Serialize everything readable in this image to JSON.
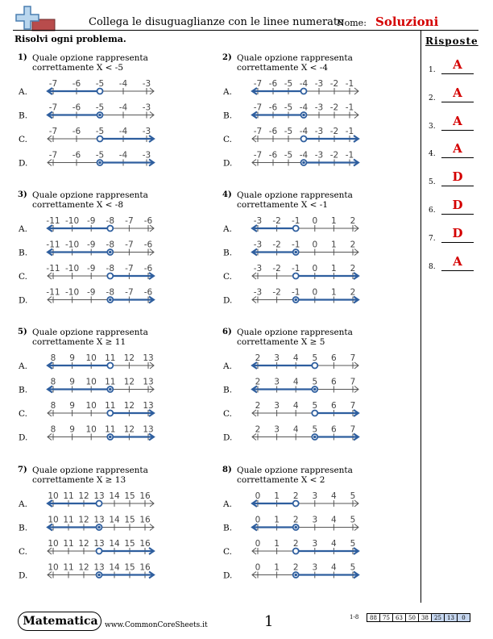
{
  "header": {
    "title": "Collega le disuguaglianze con le linee numerate",
    "name_label": "Nome:",
    "name_value": "Soluzioni",
    "instruction": "Risolvi ogni problema."
  },
  "answers": {
    "title": "Risposte",
    "items": [
      {
        "num": "1.",
        "value": "A"
      },
      {
        "num": "2.",
        "value": "A"
      },
      {
        "num": "3.",
        "value": "A"
      },
      {
        "num": "4.",
        "value": "A"
      },
      {
        "num": "5.",
        "value": "D"
      },
      {
        "num": "6.",
        "value": "D"
      },
      {
        "num": "7.",
        "value": "D"
      },
      {
        "num": "8.",
        "value": "A"
      }
    ]
  },
  "problems": [
    {
      "num": "1)",
      "text": "Quale opzione rappresenta correttamente X < -5",
      "ticks": [
        "-7",
        "-6",
        "-5",
        "-4",
        "-3"
      ],
      "point": 2,
      "options": [
        {
          "label": "A.",
          "closed": false,
          "dir": "left"
        },
        {
          "label": "B.",
          "closed": true,
          "dir": "left"
        },
        {
          "label": "C.",
          "closed": false,
          "dir": "right"
        },
        {
          "label": "D.",
          "closed": true,
          "dir": "right"
        }
      ]
    },
    {
      "num": "2)",
      "text": "Quale opzione rappresenta correttamente X < -4",
      "ticks": [
        "-7",
        "-6",
        "-5",
        "-4",
        "-3",
        "-2",
        "-1"
      ],
      "point": 3,
      "options": [
        {
          "label": "A.",
          "closed": false,
          "dir": "left"
        },
        {
          "label": "B.",
          "closed": true,
          "dir": "left"
        },
        {
          "label": "C.",
          "closed": false,
          "dir": "right"
        },
        {
          "label": "D.",
          "closed": true,
          "dir": "right"
        }
      ]
    },
    {
      "num": "3)",
      "text": "Quale opzione rappresenta correttamente X < -8",
      "ticks": [
        "-11",
        "-10",
        "-9",
        "-8",
        "-7",
        "-6"
      ],
      "point": 3,
      "options": [
        {
          "label": "A.",
          "closed": false,
          "dir": "left"
        },
        {
          "label": "B.",
          "closed": true,
          "dir": "left"
        },
        {
          "label": "C.",
          "closed": false,
          "dir": "right"
        },
        {
          "label": "D.",
          "closed": true,
          "dir": "right"
        }
      ]
    },
    {
      "num": "4)",
      "text": "Quale opzione rappresenta correttamente X < -1",
      "ticks": [
        "-3",
        "-2",
        "-1",
        "0",
        "1",
        "2"
      ],
      "point": 2,
      "options": [
        {
          "label": "A.",
          "closed": false,
          "dir": "left"
        },
        {
          "label": "B.",
          "closed": true,
          "dir": "left"
        },
        {
          "label": "C.",
          "closed": false,
          "dir": "right"
        },
        {
          "label": "D.",
          "closed": true,
          "dir": "right"
        }
      ]
    },
    {
      "num": "5)",
      "text": "Quale opzione rappresenta correttamente X ≥ 11",
      "ticks": [
        "8",
        "9",
        "10",
        "11",
        "12",
        "13"
      ],
      "point": 3,
      "options": [
        {
          "label": "A.",
          "closed": false,
          "dir": "left"
        },
        {
          "label": "B.",
          "closed": true,
          "dir": "left"
        },
        {
          "label": "C.",
          "closed": false,
          "dir": "right"
        },
        {
          "label": "D.",
          "closed": true,
          "dir": "right"
        }
      ]
    },
    {
      "num": "6)",
      "text": "Quale opzione rappresenta correttamente X ≥ 5",
      "ticks": [
        "2",
        "3",
        "4",
        "5",
        "6",
        "7"
      ],
      "point": 3,
      "options": [
        {
          "label": "A.",
          "closed": false,
          "dir": "left"
        },
        {
          "label": "B.",
          "closed": true,
          "dir": "left"
        },
        {
          "label": "C.",
          "closed": false,
          "dir": "right"
        },
        {
          "label": "D.",
          "closed": true,
          "dir": "right"
        }
      ]
    },
    {
      "num": "7)",
      "text": "Quale opzione rappresenta correttamente X ≥ 13",
      "ticks": [
        "10",
        "11",
        "12",
        "13",
        "14",
        "15",
        "16"
      ],
      "point": 3,
      "options": [
        {
          "label": "A.",
          "closed": false,
          "dir": "left"
        },
        {
          "label": "B.",
          "closed": true,
          "dir": "left"
        },
        {
          "label": "C.",
          "closed": false,
          "dir": "right"
        },
        {
          "label": "D.",
          "closed": true,
          "dir": "right"
        }
      ]
    },
    {
      "num": "8)",
      "text": "Quale opzione rappresenta correttamente X < 2",
      "ticks": [
        "0",
        "1",
        "2",
        "3",
        "4",
        "5"
      ],
      "point": 2,
      "options": [
        {
          "label": "A.",
          "closed": false,
          "dir": "left"
        },
        {
          "label": "B.",
          "closed": true,
          "dir": "left"
        },
        {
          "label": "C.",
          "closed": false,
          "dir": "right"
        },
        {
          "label": "D.",
          "closed": true,
          "dir": "right"
        }
      ]
    }
  ],
  "footer": {
    "subject": "Matematica",
    "url": "www.CommonCoreSheets.it",
    "page": "1",
    "score_range": "1-8",
    "scores": [
      "88",
      "75",
      "63",
      "50",
      "38",
      "25",
      "13",
      "0"
    ]
  },
  "colors": {
    "accent": "#2e5e9e",
    "answer": "#d40000",
    "score_highlight": "#c6d7f0"
  }
}
